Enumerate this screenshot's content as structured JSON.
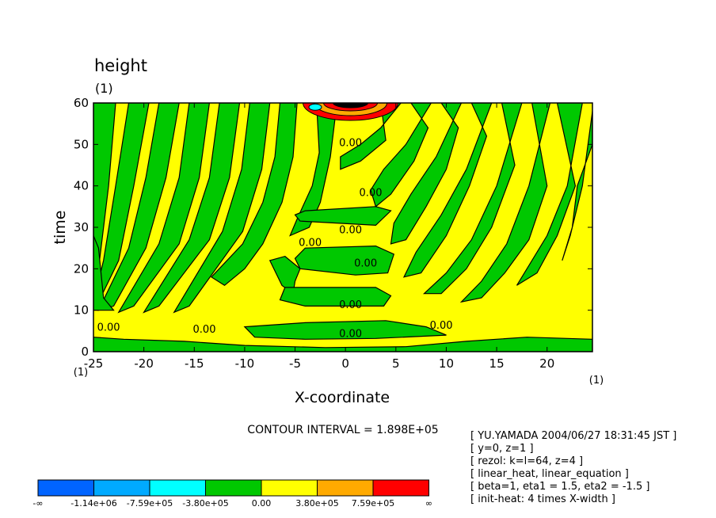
{
  "chart_data": {
    "type": "heatmap",
    "title": "height",
    "title_units": "(1)",
    "xlabel": "X-coordinate",
    "ylabel": "time",
    "x_units": "(1)",
    "corner_units": "(1)",
    "xlim": [
      -25,
      24.5
    ],
    "ylim": [
      0,
      60
    ],
    "x_ticks": [
      -25,
      -20,
      -15,
      -10,
      -5,
      0,
      5,
      10,
      15,
      20
    ],
    "y_ticks": [
      0,
      10,
      20,
      30,
      40,
      50,
      60
    ],
    "contour_labels": [
      {
        "x": 0.5,
        "y": 50.5,
        "text": "0.00"
      },
      {
        "x": 2.5,
        "y": 38.5,
        "text": "0.00"
      },
      {
        "x": 0.5,
        "y": 29.5,
        "text": "0.00"
      },
      {
        "x": -3.5,
        "y": 26.5,
        "text": "0.00"
      },
      {
        "x": 2,
        "y": 21.5,
        "text": "0.00"
      },
      {
        "x": 0.5,
        "y": 11.5,
        "text": "0.00"
      },
      {
        "x": 0.5,
        "y": 4.5,
        "text": "0.00"
      },
      {
        "x": 9.5,
        "y": 6.5,
        "text": "0.00"
      },
      {
        "x": -14,
        "y": 5.5,
        "text": "0.00"
      },
      {
        "x": -23.5,
        "y": 6,
        "text": "0.00"
      }
    ],
    "contour_interval_text": "CONTOUR INTERVAL = 1.898E+05",
    "colorbar": {
      "labels": [
        "-∞",
        "-1.14e+06",
        "-7.59e+05",
        "-3.80e+05",
        "0.00",
        "3.80e+05",
        "7.59e+05",
        "∞"
      ],
      "colors": [
        "#0064ff",
        "#00aaff",
        "#00ffff",
        "#00c800",
        "#ffff00",
        "#ffaa00",
        "#ff0000"
      ]
    },
    "info_lines": [
      "[ YU.YAMADA 2004/06/27 18:31:45 JST ]",
      "[ y=0, z=1 ]",
      "[ rezol: k=l=64, z=4 ]",
      "[ linear_heat, linear_equation ]",
      "[ beta=1, eta1 = 1.5, eta2 = -1.5 ]",
      "[ init-heat: 4 times X-width ]"
    ]
  }
}
